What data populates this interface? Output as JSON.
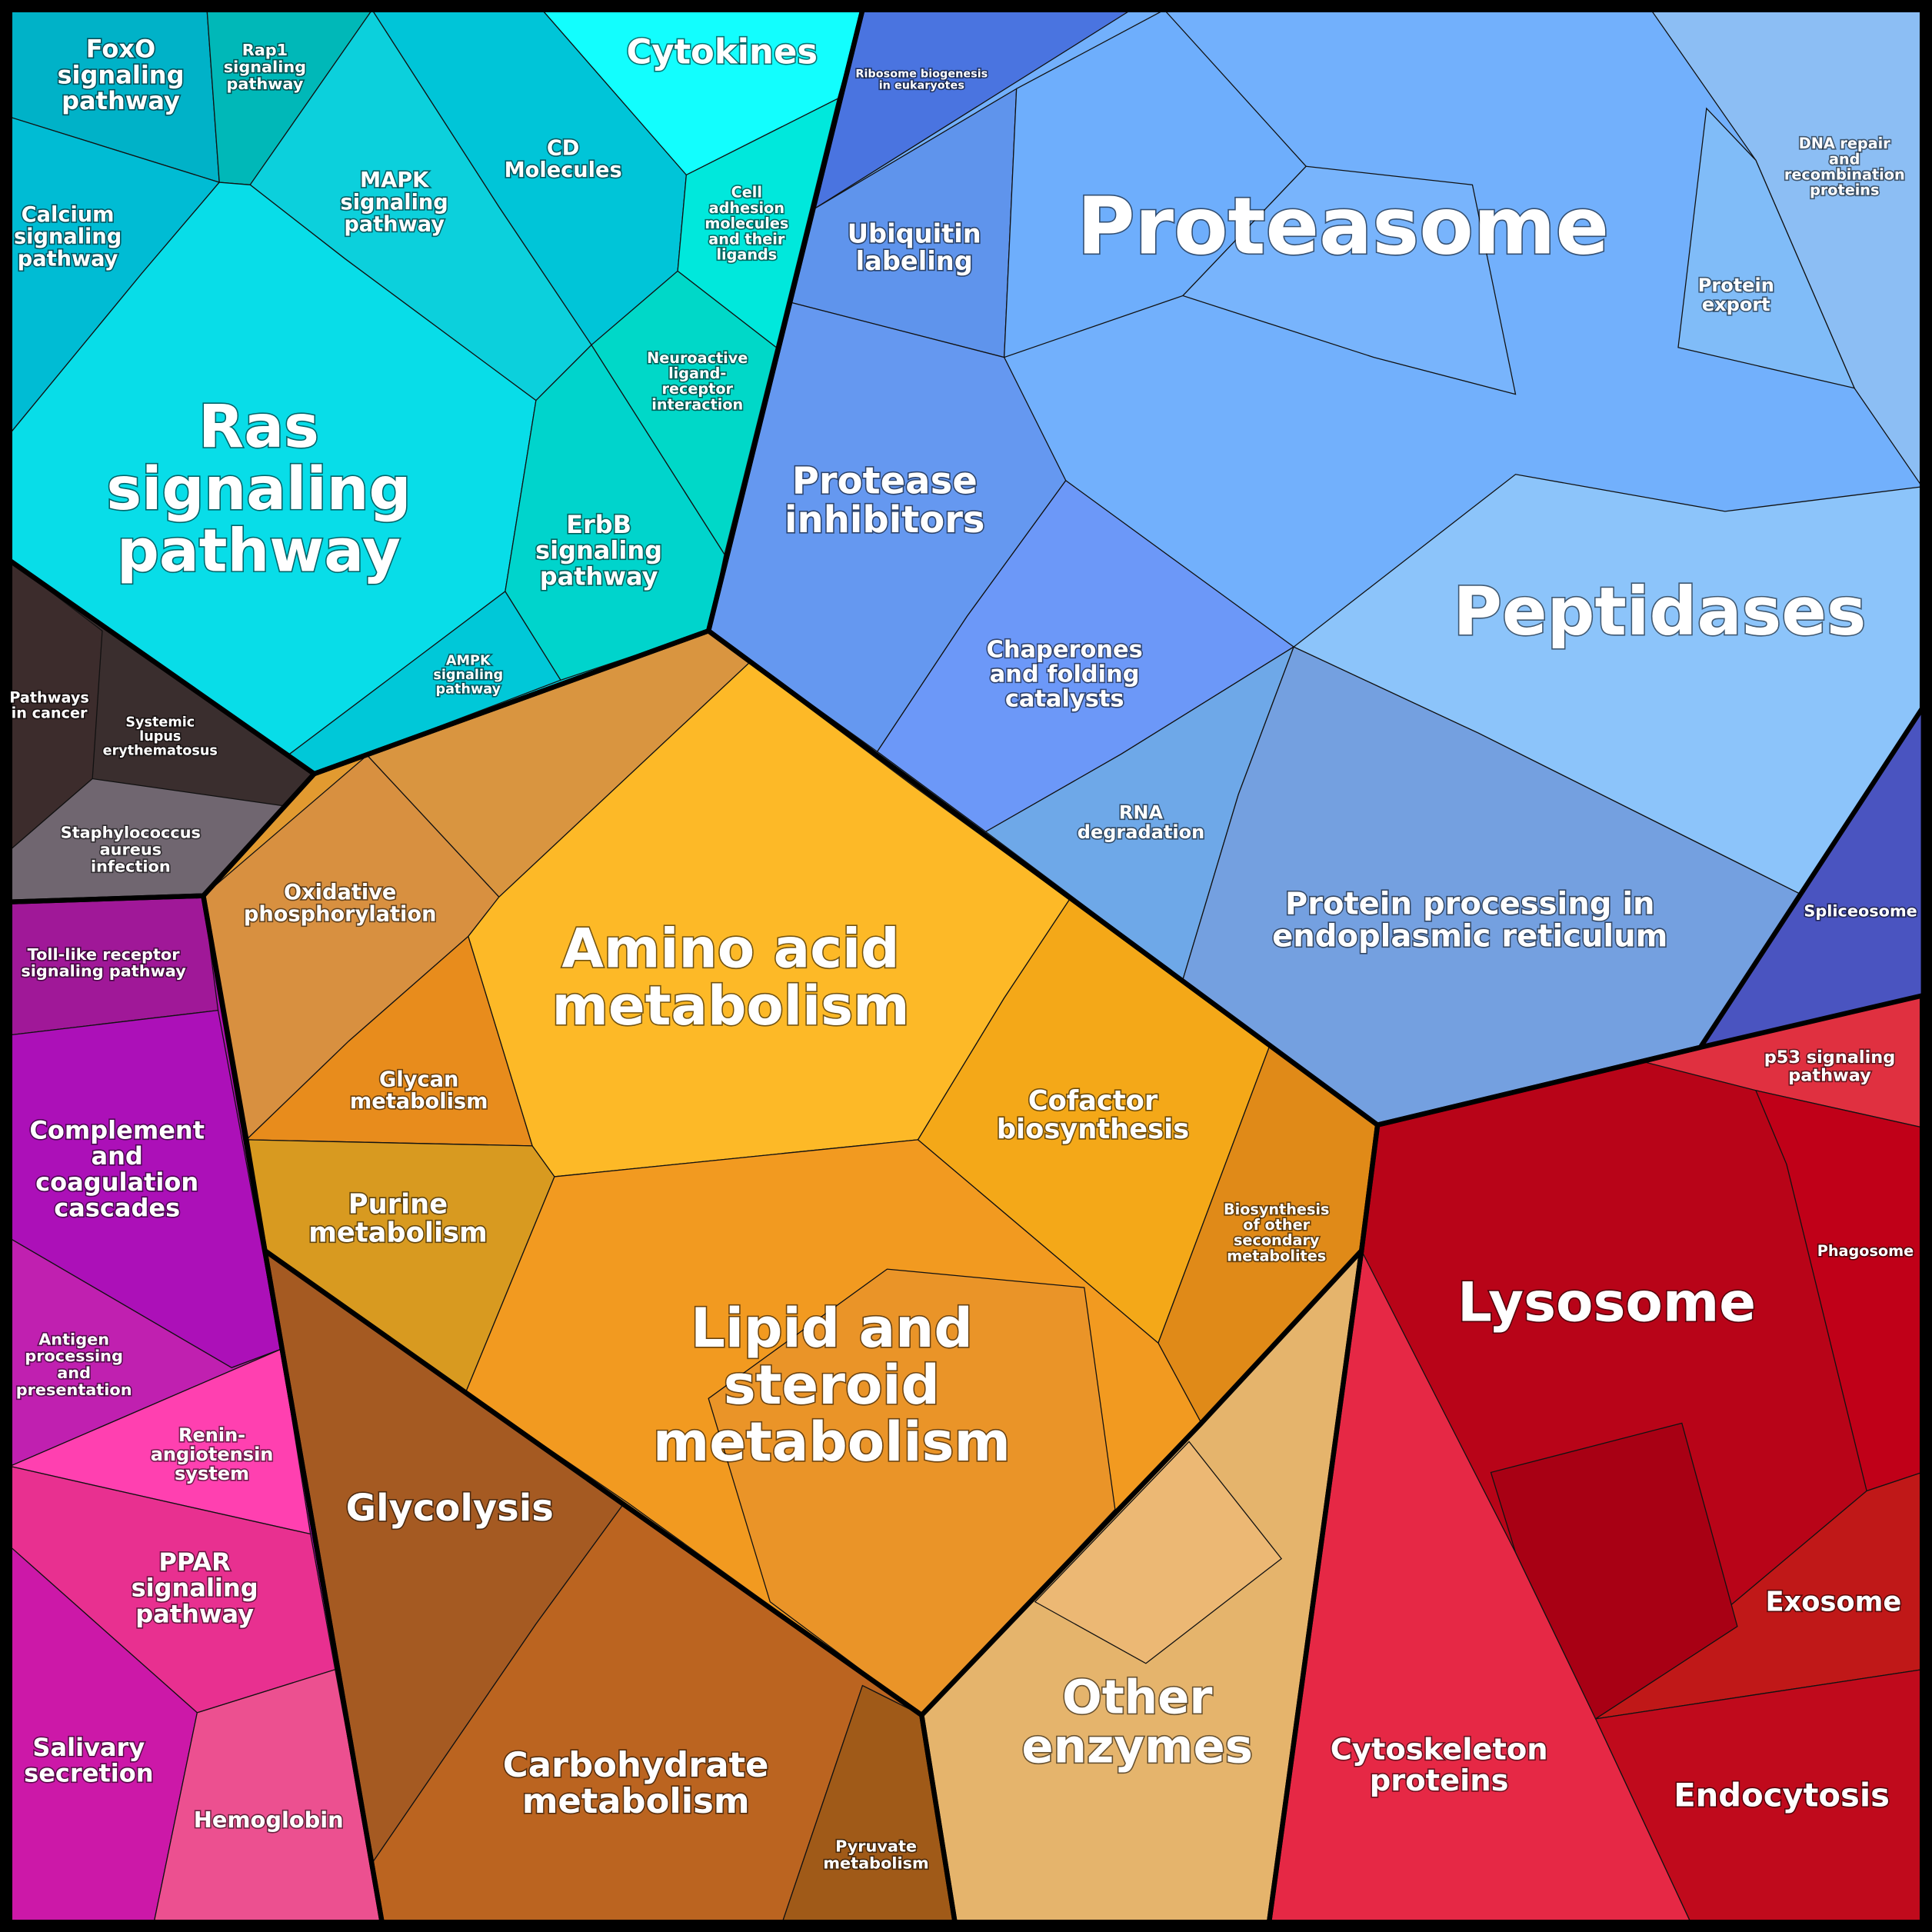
{
  "regions": [
    {
      "lines": [
        "FoxO",
        "signaling",
        "pathway"
      ]
    },
    {
      "lines": [
        "Rap1",
        "signaling",
        "pathway"
      ]
    },
    {
      "lines": [
        "Cytokines"
      ]
    },
    {
      "lines": [
        "CD",
        "Molecules"
      ]
    },
    {
      "lines": [
        "MAPK",
        "signaling",
        "pathway"
      ]
    },
    {
      "lines": [
        "Calcium",
        "signaling",
        "pathway"
      ]
    },
    {
      "lines": [
        "Cell",
        "adhesion",
        "molecules",
        "and their",
        "ligands"
      ]
    },
    {
      "lines": [
        "Neuroactive",
        "ligand-",
        "receptor",
        "interaction"
      ]
    },
    {
      "lines": [
        "Ras",
        "signaling",
        "pathway"
      ]
    },
    {
      "lines": [
        "ErbB",
        "signaling",
        "pathway"
      ]
    },
    {
      "lines": [
        "AMPK",
        "signaling",
        "pathway"
      ]
    },
    {
      "lines": [
        "Pathways",
        "in cancer"
      ]
    },
    {
      "lines": [
        "Systemic",
        "lupus",
        "erythematosus"
      ]
    },
    {
      "lines": [
        "Staphylococcus",
        "aureus",
        "infection"
      ]
    },
    {
      "lines": [
        "Ribosome biogenesis",
        "in eukaryotes"
      ]
    },
    {
      "lines": [
        "Ubiquitin",
        "labeling"
      ]
    },
    {
      "lines": [
        "Proteasome"
      ]
    },
    {
      "lines": [
        "DNA repair",
        "and",
        "recombination",
        "proteins"
      ]
    },
    {
      "lines": [
        "Protein",
        "export"
      ]
    },
    {
      "lines": [
        "Protease",
        "inhibitors"
      ]
    },
    {
      "lines": [
        "Peptidases"
      ]
    },
    {
      "lines": [
        "Chaperones",
        "and folding",
        "catalysts"
      ]
    },
    {
      "lines": [
        "RNA",
        "degradation"
      ]
    },
    {
      "lines": [
        "Protein processing in",
        "endoplasmic reticulum"
      ]
    },
    {
      "lines": [
        "Spliceosome"
      ]
    },
    {
      "lines": [
        "Amino acid",
        "metabolism"
      ]
    },
    {
      "lines": [
        "Oxidative",
        "phosphorylation"
      ]
    },
    {
      "lines": [
        "Glycan",
        "metabolism"
      ]
    },
    {
      "lines": [
        "Cofactor",
        "biosynthesis"
      ]
    },
    {
      "lines": [
        "Purine",
        "metabolism"
      ]
    },
    {
      "lines": [
        "Biosynthesis",
        "of other",
        "secondary",
        "metabolites"
      ]
    },
    {
      "lines": [
        "Lipid and",
        "steroid",
        "metabolism"
      ]
    },
    {
      "lines": [
        "Glycolysis"
      ]
    },
    {
      "lines": [
        "Carbohydrate",
        "metabolism"
      ]
    },
    {
      "lines": [
        "Pyruvate",
        "metabolism"
      ]
    },
    {
      "lines": [
        "Other",
        "enzymes"
      ]
    },
    {
      "lines": [
        "p53 signaling",
        "pathway"
      ]
    },
    {
      "lines": [
        "Lysosome"
      ]
    },
    {
      "lines": [
        "Phagosome"
      ]
    },
    {
      "lines": [
        "Exosome"
      ]
    },
    {
      "lines": [
        "Cytoskeleton",
        "proteins"
      ]
    },
    {
      "lines": [
        "Endocytosis"
      ]
    },
    {
      "lines": [
        "Toll-like receptor",
        "signaling pathway"
      ]
    },
    {
      "lines": [
        "Complement",
        "and",
        "coagulation",
        "cascades"
      ]
    },
    {
      "lines": [
        "Antigen",
        "processing",
        "and",
        "presentation"
      ]
    },
    {
      "lines": [
        "Renin-",
        "angiotensin",
        "system"
      ]
    },
    {
      "lines": [
        "PPAR",
        "signaling",
        "pathway"
      ]
    },
    {
      "lines": [
        "Salivary",
        "secretion"
      ]
    },
    {
      "lines": [
        "Hemoglobin"
      ]
    }
  ]
}
